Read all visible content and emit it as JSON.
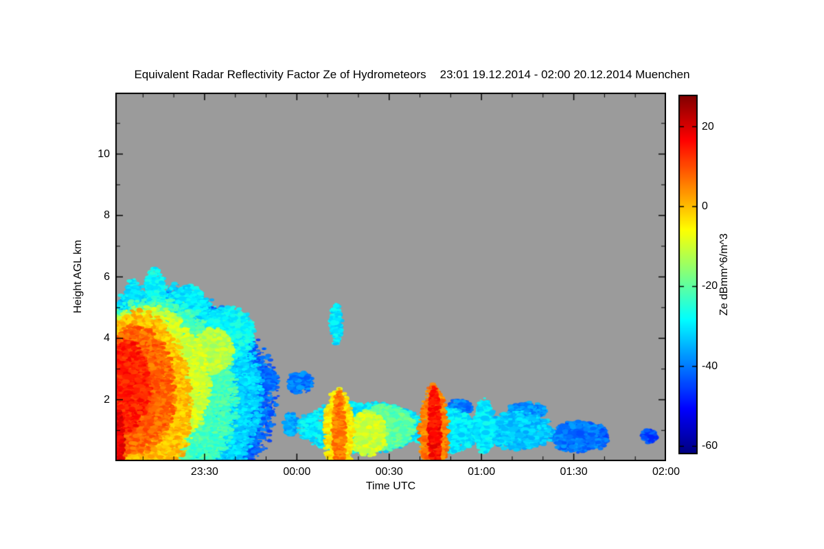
{
  "chart_data": {
    "type": "heatmap",
    "title": "Equivalent Radar Reflectivity Factor Ze of Hydrometeors",
    "subtitle": "23:01 19.12.2014 - 02:00 20.12.2014 Muenchen",
    "station": "Muenchen",
    "time_start_utc": "23:01 19.12.2014",
    "time_end_utc": "02:00 20.12.2014",
    "xlabel": "Time UTC",
    "ylabel": "Height AGL km",
    "x_span_minutes": 179,
    "x_ticks": [
      "23:30",
      "00:00",
      "00:30",
      "01:00",
      "01:30",
      "02:00"
    ],
    "x_tick_minutes": [
      29,
      59,
      89,
      119,
      149,
      179
    ],
    "ylim": [
      0,
      12
    ],
    "y_ticks": [
      2,
      4,
      6,
      8,
      10
    ],
    "grid": false,
    "background_color": "#9b9b9b",
    "background_meaning": "no detectable signal",
    "colorbar": {
      "label": "Ze dBmm^6/m^3",
      "position": "right",
      "colormap": "jet",
      "min": -62,
      "max": 28,
      "ticks": [
        20,
        0,
        -20,
        -40,
        -60
      ]
    },
    "features_note": "approximate echo regions read off the plot: t = minutes after 23:01 UTC, h = height range km AGL, v = reflectivity dBZe",
    "features": [
      {
        "t": [
          0,
          50
        ],
        "h": [
          0,
          5.3
        ],
        "v": -42
      },
      {
        "t": [
          0,
          46
        ],
        "h": [
          0,
          5.5
        ],
        "v": -32
      },
      {
        "t": [
          0,
          38
        ],
        "h": [
          0.1,
          5.1
        ],
        "v": -22
      },
      {
        "t": [
          0,
          30
        ],
        "h": [
          0.2,
          4.9
        ],
        "v": -10
      },
      {
        "t": [
          0,
          24
        ],
        "h": [
          0.1,
          4.7
        ],
        "v": 0
      },
      {
        "t": [
          0,
          19
        ],
        "h": [
          0.3,
          4.3
        ],
        "v": 8
      },
      {
        "t": [
          0,
          11
        ],
        "h": [
          1.0,
          3.9
        ],
        "v": 14
      },
      {
        "t": [
          0,
          2.5
        ],
        "h": [
          0,
          1.7
        ],
        "v": 19
      },
      {
        "t": [
          10,
          16
        ],
        "h": [
          4.9,
          6.3
        ],
        "v": -28
      },
      {
        "t": [
          3,
          8
        ],
        "h": [
          4.7,
          5.9
        ],
        "v": -30
      },
      {
        "t": [
          17,
          30
        ],
        "h": [
          4.3,
          5.7
        ],
        "v": -30
      },
      {
        "t": [
          28,
          45
        ],
        "h": [
          3.3,
          5.0
        ],
        "v": -28
      },
      {
        "t": [
          26,
          38
        ],
        "h": [
          2.9,
          4.3
        ],
        "v": -12
      },
      {
        "t": [
          19,
          33
        ],
        "h": [
          1.1,
          2.5
        ],
        "v": -26
      },
      {
        "t": [
          33,
          46
        ],
        "h": [
          2.3,
          3.3
        ],
        "v": -36
      },
      {
        "t": [
          13,
          27
        ],
        "h": [
          0.1,
          1.3
        ],
        "v": -28
      },
      {
        "t": [
          44,
          53
        ],
        "h": [
          2.3,
          3.0
        ],
        "v": -42
      },
      {
        "t": [
          56,
          64
        ],
        "h": [
          2.2,
          2.9
        ],
        "v": -40
      },
      {
        "t": [
          55,
          59
        ],
        "h": [
          0.8,
          1.6
        ],
        "v": -36
      },
      {
        "t": [
          60,
          100
        ],
        "h": [
          0.3,
          1.9
        ],
        "v": -30
      },
      {
        "t": [
          68,
          77
        ],
        "h": [
          0.1,
          2.3
        ],
        "v": -4
      },
      {
        "t": [
          71,
          74.5
        ],
        "h": [
          0.1,
          2.3
        ],
        "v": 6
      },
      {
        "t": [
          76,
          88
        ],
        "h": [
          0.2,
          1.6
        ],
        "v": -10
      },
      {
        "t": [
          79,
          97
        ],
        "h": [
          0.4,
          1.8
        ],
        "v": -20
      },
      {
        "t": [
          99,
          108
        ],
        "h": [
          0.1,
          2.4
        ],
        "v": 6
      },
      {
        "t": [
          102,
          105.5
        ],
        "h": [
          0.1,
          2.4
        ],
        "v": 16
      },
      {
        "t": [
          97,
          118
        ],
        "h": [
          0.3,
          1.7
        ],
        "v": -30
      },
      {
        "t": [
          117,
          123
        ],
        "h": [
          0.3,
          2.0
        ],
        "v": -30
      },
      {
        "t": [
          120,
          142
        ],
        "h": [
          0.4,
          1.6
        ],
        "v": -33
      },
      {
        "t": [
          128,
          140
        ],
        "h": [
          1.4,
          1.9
        ],
        "v": -38
      },
      {
        "t": [
          108,
          116
        ],
        "h": [
          1.5,
          2.0
        ],
        "v": -40
      },
      {
        "t": [
          142,
          158
        ],
        "h": [
          0.3,
          1.3
        ],
        "v": -40
      },
      {
        "t": [
          155,
          160
        ],
        "h": [
          0.4,
          1.2
        ],
        "v": -42
      },
      {
        "t": [
          70,
          73.5
        ],
        "h": [
          3.8,
          5.1
        ],
        "v": -30
      },
      {
        "t": [
          171,
          176
        ],
        "h": [
          0.6,
          1.05
        ],
        "v": -44
      }
    ]
  }
}
